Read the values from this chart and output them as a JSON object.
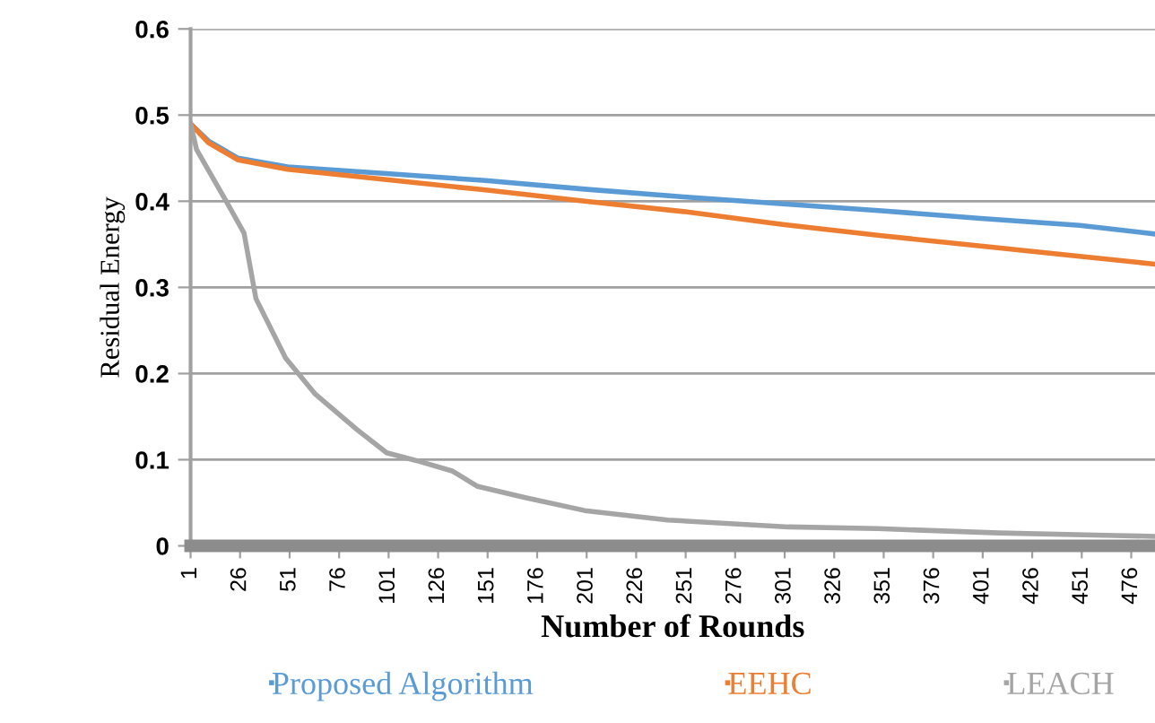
{
  "chart_data": {
    "type": "line",
    "xlabel": "Number of Rounds",
    "ylabel": "Residual Energy",
    "xlim": [
      1,
      488
    ],
    "xticks": [
      1,
      26,
      51,
      76,
      101,
      126,
      151,
      176,
      201,
      226,
      251,
      276,
      301,
      326,
      351,
      376,
      401,
      426,
      451,
      476
    ],
    "ylim": [
      0,
      0.6
    ],
    "yticks": [
      0,
      0.1,
      0.2,
      0.3,
      0.4,
      0.5,
      0.6
    ],
    "grid": "y",
    "legend": "bottom",
    "marker": "none",
    "line_style": "solid",
    "series": [
      {
        "name": "Proposed Algorithm",
        "color": "#5b9bd5",
        "x": [
          1,
          10,
          25,
          50,
          100,
          150,
          200,
          250,
          300,
          350,
          400,
          450,
          488
        ],
        "values": [
          0.49,
          0.47,
          0.45,
          0.44,
          0.432,
          0.424,
          0.414,
          0.405,
          0.397,
          0.389,
          0.38,
          0.372,
          0.362
        ]
      },
      {
        "name": "EEHC",
        "color": "#ed7d31",
        "x": [
          1,
          10,
          25,
          50,
          100,
          150,
          200,
          250,
          300,
          350,
          400,
          450,
          488
        ],
        "values": [
          0.49,
          0.468,
          0.448,
          0.437,
          0.425,
          0.413,
          0.4,
          0.388,
          0.373,
          0.36,
          0.348,
          0.336,
          0.327
        ]
      },
      {
        "name": "LEACH",
        "color": "#a5a5a5",
        "x": [
          1,
          4,
          19,
          28,
          34,
          49,
          64,
          85,
          100,
          115,
          133,
          146,
          170,
          200,
          230,
          242,
          303,
          348,
          409,
          468,
          488
        ],
        "values": [
          0.49,
          0.46,
          0.4,
          0.363,
          0.287,
          0.218,
          0.176,
          0.135,
          0.108,
          0.099,
          0.087,
          0.069,
          0.056,
          0.041,
          0.033,
          0.03,
          0.022,
          0.02,
          0.015,
          0.012,
          0.011
        ]
      }
    ]
  }
}
